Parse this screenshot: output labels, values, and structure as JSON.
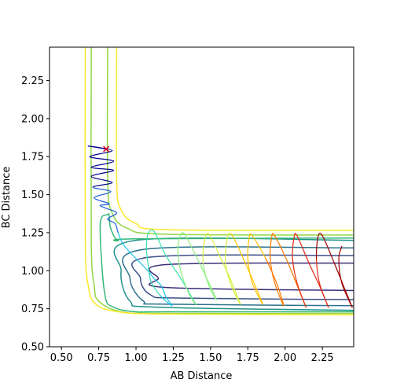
{
  "chart_data": {
    "type": "line",
    "title": "",
    "xlabel": "AB Distance",
    "ylabel": "BC Distance",
    "xlim": [
      0.42,
      2.46
    ],
    "ylim": [
      0.5,
      2.47
    ],
    "xticks": [
      0.5,
      0.75,
      1.0,
      1.25,
      1.5,
      1.75,
      2.0,
      2.25
    ],
    "yticks": [
      0.5,
      0.75,
      1.0,
      1.25,
      1.5,
      1.75,
      2.0,
      2.25
    ],
    "xtick_labels": [
      "0.50",
      "0.75",
      "1.00",
      "1.25",
      "1.50",
      "1.75",
      "2.00",
      "2.25"
    ],
    "ytick_labels": [
      "0.50",
      "0.75",
      "1.00",
      "1.25",
      "1.50",
      "1.75",
      "2.00",
      "2.25"
    ],
    "grid": false,
    "contour_levels": [
      {
        "color": "#3b2f7a",
        "x": [
          2.46,
          1.2,
          1.15,
          1.2,
          2.46
        ],
        "y": [
          1.05,
          1.04,
          0.95,
          0.89,
          0.87
        ]
      },
      {
        "color": "#3a4f8a",
        "x": [
          2.46,
          1.1,
          1.03,
          1.1,
          1.3,
          2.46
        ],
        "y": [
          1.1,
          1.09,
          0.95,
          0.84,
          0.82,
          0.81
        ]
      },
      {
        "color": "#2c718e",
        "x": [
          2.46,
          1.05,
          0.96,
          1.05,
          1.2,
          2.46
        ],
        "y": [
          1.15,
          1.14,
          0.95,
          0.8,
          0.78,
          0.77
        ]
      },
      {
        "color": "#21918c",
        "x": [
          2.46,
          1.0,
          0.9,
          0.96,
          1.15,
          2.46
        ],
        "y": [
          1.2,
          1.2,
          1.0,
          0.8,
          0.76,
          0.74
        ]
      },
      {
        "color": "#35b779",
        "x": [
          2.46,
          1.0,
          0.88,
          0.83,
          0.82,
          0.81,
          0.76,
          0.79,
          0.85,
          1.0,
          1.2,
          2.46
        ],
        "y": [
          1.215,
          1.21,
          1.2,
          1.28,
          1.36,
          1.37,
          1.3,
          0.85,
          0.76,
          0.73,
          0.73,
          0.73
        ]
      },
      {
        "color": "#90d743",
        "x": [
          0.81,
          0.81,
          0.84,
          0.94,
          1.2,
          2.46
        ],
        "y": [
          2.47,
          1.6,
          1.38,
          1.28,
          1.24,
          1.235
        ]
      },
      {
        "color": "#90d743",
        "x": [
          0.7,
          0.7,
          0.72,
          0.75,
          0.9,
          1.2,
          2.46
        ],
        "y": [
          2.47,
          1.2,
          0.9,
          0.8,
          0.73,
          0.72,
          0.72
        ]
      },
      {
        "color": "#fde725",
        "x": [
          0.87,
          0.87,
          0.9,
          1.0,
          1.2,
          2.46
        ],
        "y": [
          2.47,
          1.6,
          1.4,
          1.31,
          1.27,
          1.265
        ]
      },
      {
        "color": "#fde725",
        "x": [
          0.66,
          0.66,
          0.68,
          0.73,
          0.88,
          1.2,
          2.46
        ],
        "y": [
          2.47,
          1.2,
          0.9,
          0.78,
          0.73,
          0.715,
          0.71
        ]
      }
    ],
    "trajectory": {
      "start": {
        "x": 0.8,
        "y": 1.8,
        "marker": "x",
        "color": "#dd0022"
      },
      "points": [
        [
          0.8,
          1.8
        ],
        [
          0.68,
          1.82
        ],
        [
          0.84,
          1.79
        ],
        [
          0.69,
          1.75
        ],
        [
          0.85,
          1.72
        ],
        [
          0.7,
          1.68
        ],
        [
          0.85,
          1.66
        ],
        [
          0.7,
          1.62
        ],
        [
          0.84,
          1.58
        ],
        [
          0.71,
          1.55
        ],
        [
          0.83,
          1.52
        ],
        [
          0.72,
          1.48
        ],
        [
          0.82,
          1.44
        ],
        [
          0.76,
          1.43
        ],
        [
          0.8,
          1.41
        ],
        [
          0.87,
          1.38
        ],
        [
          0.81,
          1.34
        ],
        [
          0.86,
          1.31
        ],
        [
          0.88,
          1.25
        ],
        [
          0.91,
          1.18
        ],
        [
          0.96,
          1.12
        ],
        [
          1.02,
          1.06
        ],
        [
          1.08,
          1.0
        ],
        [
          1.12,
          0.95
        ],
        [
          1.17,
          0.9
        ],
        [
          1.2,
          0.83
        ],
        [
          1.24,
          0.77
        ],
        [
          1.16,
          0.84
        ],
        [
          1.1,
          0.93
        ],
        [
          1.08,
          1.05
        ],
        [
          1.07,
          1.15
        ],
        [
          1.08,
          1.24
        ],
        [
          1.12,
          1.26
        ],
        [
          1.2,
          1.1
        ],
        [
          1.3,
          0.95
        ],
        [
          1.4,
          0.78
        ],
        [
          1.35,
          0.86
        ],
        [
          1.3,
          1.0
        ],
        [
          1.28,
          1.15
        ],
        [
          1.31,
          1.25
        ],
        [
          1.36,
          1.18
        ],
        [
          1.45,
          1.0
        ],
        [
          1.54,
          0.81
        ],
        [
          1.49,
          0.9
        ],
        [
          1.45,
          1.05
        ],
        [
          1.46,
          1.2
        ],
        [
          1.49,
          1.24
        ],
        [
          1.56,
          1.1
        ],
        [
          1.63,
          0.95
        ],
        [
          1.7,
          0.78
        ],
        [
          1.64,
          0.9
        ],
        [
          1.6,
          1.05
        ],
        [
          1.61,
          1.2
        ],
        [
          1.64,
          1.24
        ],
        [
          1.72,
          1.08
        ],
        [
          1.8,
          0.9
        ],
        [
          1.85,
          0.78
        ],
        [
          1.78,
          0.92
        ],
        [
          1.75,
          1.08
        ],
        [
          1.76,
          1.22
        ],
        [
          1.78,
          1.23
        ],
        [
          1.87,
          1.08
        ],
        [
          1.95,
          0.9
        ],
        [
          1.99,
          0.77
        ],
        [
          1.93,
          0.92
        ],
        [
          1.9,
          1.08
        ],
        [
          1.91,
          1.22
        ],
        [
          1.93,
          1.23
        ],
        [
          2.02,
          1.05
        ],
        [
          2.09,
          0.88
        ],
        [
          2.14,
          0.76
        ],
        [
          2.08,
          0.92
        ],
        [
          2.05,
          1.08
        ],
        [
          2.06,
          1.22
        ],
        [
          2.08,
          1.23
        ],
        [
          2.16,
          1.05
        ],
        [
          2.24,
          0.88
        ],
        [
          2.29,
          0.76
        ],
        [
          2.23,
          0.92
        ],
        [
          2.21,
          1.08
        ],
        [
          2.22,
          1.22
        ],
        [
          2.25,
          1.23
        ],
        [
          2.33,
          1.05
        ],
        [
          2.4,
          0.88
        ],
        [
          2.45,
          0.76
        ],
        [
          2.38,
          0.92
        ],
        [
          2.36,
          1.08
        ],
        [
          2.38,
          1.16
        ]
      ],
      "colormap": [
        "#00008b",
        "#1f5fd6",
        "#19c6e8",
        "#35e0b0",
        "#8cf07d",
        "#d7f03c",
        "#ffc400",
        "#ff7a00",
        "#e22b14",
        "#9b0000"
      ]
    }
  }
}
